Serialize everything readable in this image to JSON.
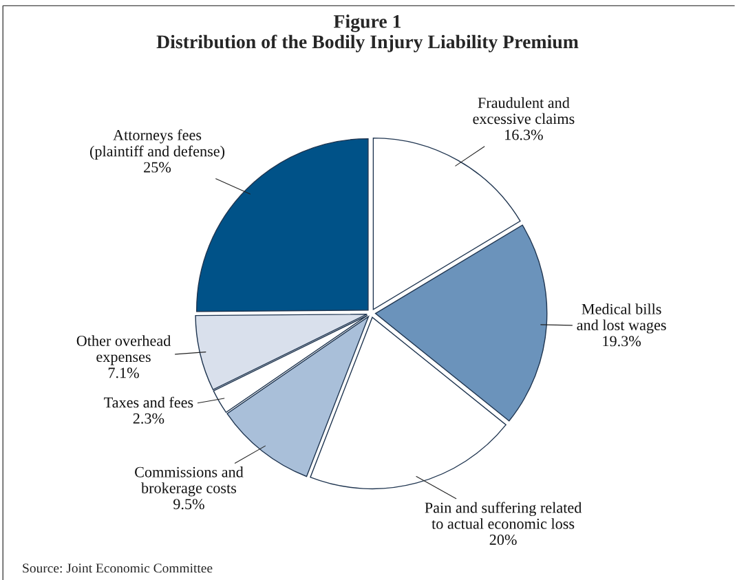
{
  "chart_data": {
    "type": "pie",
    "title": "Figure 1\nDistribution of the Bodily Injury Liability Premium",
    "categories": [
      "Fraudulent and\nexcessive claims",
      "Medical bills\nand lost wages",
      "Pain and suffering related\nto actual economic loss",
      "Commissions and\nbrokerage costs",
      "Taxes and fees",
      "Other overhead\nexpenses",
      "Attorneys fees\n(plaintiff and defense)"
    ],
    "values": [
      16.3,
      19.3,
      20,
      9.5,
      2.3,
      7.1,
      25
    ],
    "value_labels": [
      "16.3%",
      "19.3%",
      "20%",
      "9.5%",
      "2.3%",
      "7.1%",
      "25%"
    ],
    "colors": [
      "#ffffff",
      "#6b93bb",
      "#ffffff",
      "#a9bfd9",
      "#ffffff",
      "#d9e0ec",
      "#005288"
    ],
    "annotations": [
      "Source: Joint Economic Committee"
    ]
  }
}
